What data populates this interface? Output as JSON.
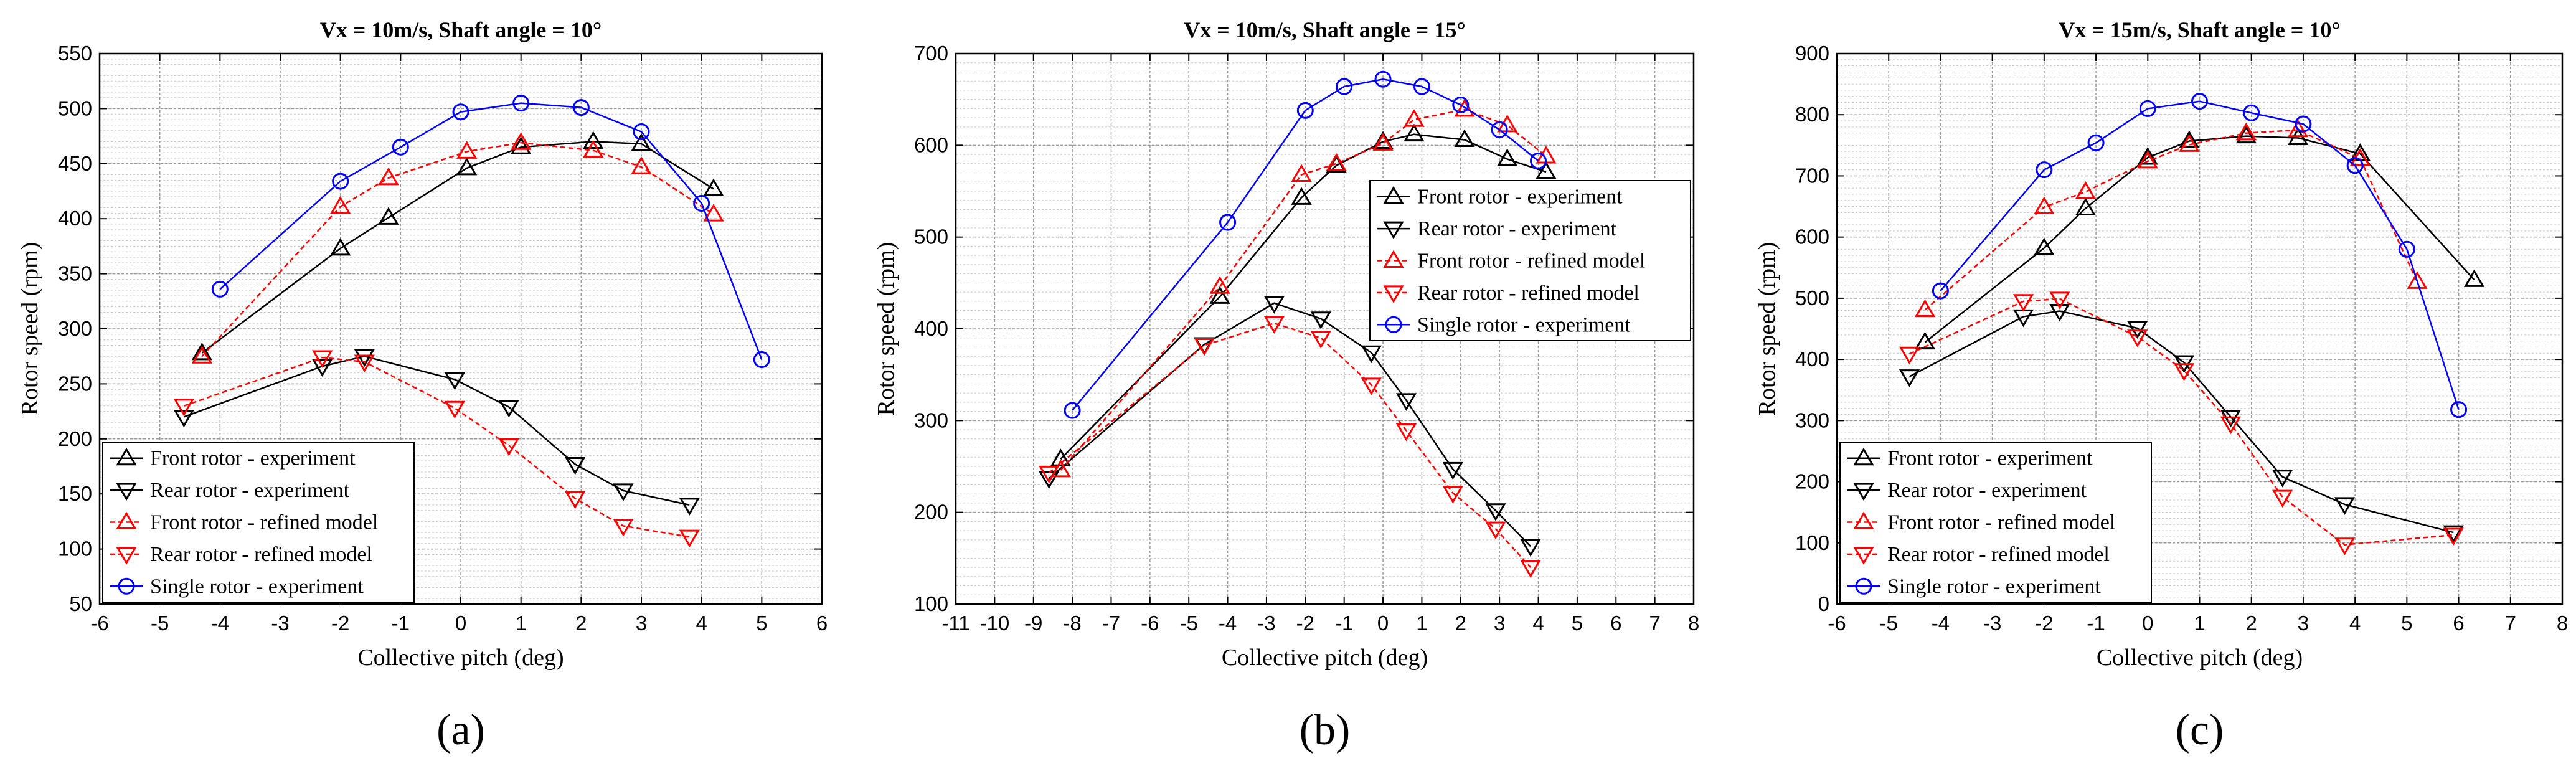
{
  "colors": {
    "front_experiment": "#000000",
    "rear_experiment": "#000000",
    "front_model": "#ff0000",
    "rear_model": "#ff0000",
    "single_experiment": "#0000ff"
  },
  "legend_labels": [
    "Front rotor - experiment",
    "Rear rotor - experiment",
    "Front rotor - refined model",
    "Rear rotor - refined model",
    "Single rotor - experiment"
  ],
  "chart_data": [
    {
      "type": "line",
      "panel_label": "(a)",
      "title": "Vx = 10m/s, Shaft angle = 10°",
      "xlabel": "Collective pitch (deg)",
      "ylabel": "Rotor speed (rpm)",
      "xlim": [
        -6,
        6
      ],
      "ylim": [
        50,
        550
      ],
      "xticks": [
        -6,
        -5,
        -4,
        -3,
        -2,
        -1,
        0,
        1,
        2,
        3,
        4,
        5,
        6
      ],
      "yticks": [
        50,
        100,
        150,
        200,
        250,
        300,
        350,
        400,
        450,
        500,
        550
      ],
      "grid": true,
      "legend_position": "bottom-left",
      "series": [
        {
          "name": "Front rotor - experiment",
          "marker": "triangle-up",
          "color": "#000000",
          "x": [
            -4.3,
            -2,
            -1.2,
            0.1,
            1,
            2.2,
            3,
            4.2
          ],
          "y": [
            278,
            373,
            401,
            446,
            465,
            470,
            468,
            427
          ]
        },
        {
          "name": "Rear rotor - experiment",
          "marker": "triangle-down",
          "color": "#000000",
          "x": [
            -4.6,
            -2.3,
            -1.6,
            -0.1,
            0.8,
            1.9,
            2.7,
            3.8
          ],
          "y": [
            220,
            266,
            275,
            254,
            229,
            177,
            153,
            140
          ]
        },
        {
          "name": "Front rotor - refined model",
          "marker": "triangle-up",
          "color": "#ff0000",
          "x": [
            -4.3,
            -2,
            -1.2,
            0.1,
            1,
            2.2,
            3,
            4.2
          ],
          "y": [
            275,
            411,
            437,
            461,
            469,
            462,
            447,
            404
          ]
        },
        {
          "name": "Rear rotor - refined model",
          "marker": "triangle-down",
          "color": "#ff0000",
          "x": [
            -4.6,
            -2.3,
            -1.6,
            -0.1,
            0.8,
            1.9,
            2.7,
            3.8
          ],
          "y": [
            230,
            274,
            270,
            228,
            194,
            146,
            121,
            111
          ]
        },
        {
          "name": "Single rotor - experiment",
          "marker": "circle",
          "color": "#0000ff",
          "x": [
            -4,
            -2,
            -1,
            0,
            1,
            2,
            3,
            4,
            5
          ],
          "y": [
            336,
            434,
            465,
            497,
            505,
            501,
            479,
            414,
            272
          ]
        }
      ]
    },
    {
      "type": "line",
      "panel_label": "(b)",
      "title": "Vx = 10m/s, Shaft angle = 15°",
      "xlabel": "Collective pitch (deg)",
      "ylabel": "Rotor speed (rpm)",
      "xlim": [
        -11,
        8
      ],
      "ylim": [
        100,
        700
      ],
      "xticks": [
        -11,
        -10,
        -9,
        -8,
        -7,
        -6,
        -5,
        -4,
        -3,
        -2,
        -1,
        0,
        1,
        2,
        3,
        4,
        5,
        6,
        7,
        8
      ],
      "yticks": [
        100,
        200,
        300,
        400,
        500,
        600,
        700
      ],
      "grid": true,
      "legend_position": "top-right",
      "series": [
        {
          "name": "Front rotor - experiment",
          "marker": "triangle-up",
          "color": "#000000",
          "x": [
            -8.3,
            -4.2,
            -2.1,
            -1.2,
            0,
            0.8,
            2.1,
            3.2,
            4.2
          ],
          "y": [
            258,
            435,
            543,
            578,
            604,
            612,
            606,
            585,
            571
          ]
        },
        {
          "name": "Rear rotor - experiment",
          "marker": "triangle-down",
          "color": "#000000",
          "x": [
            -8.6,
            -4.6,
            -2.8,
            -1.6,
            -0.3,
            0.6,
            1.8,
            2.9,
            3.8
          ],
          "y": [
            237,
            383,
            428,
            411,
            374,
            322,
            247,
            202,
            163
          ]
        },
        {
          "name": "Front rotor - refined model",
          "marker": "triangle-up",
          "color": "#ff0000",
          "x": [
            -8.3,
            -4.2,
            -2.1,
            -1.2,
            0,
            0.8,
            2.1,
            3.2,
            4.2
          ],
          "y": [
            246,
            446,
            568,
            580,
            602,
            628,
            639,
            622,
            588
          ]
        },
        {
          "name": "Rear rotor - refined model",
          "marker": "triangle-down",
          "color": "#ff0000",
          "x": [
            -8.6,
            -4.6,
            -2.8,
            -1.6,
            -0.3,
            0.6,
            1.8,
            2.9,
            3.8
          ],
          "y": [
            243,
            382,
            406,
            390,
            339,
            289,
            221,
            182,
            140
          ]
        },
        {
          "name": "Single rotor - experiment",
          "marker": "circle",
          "color": "#0000ff",
          "x": [
            -8,
            -4,
            -2,
            -1,
            0,
            1,
            2,
            3,
            4
          ],
          "y": [
            311,
            516,
            638,
            664,
            672,
            664,
            644,
            617,
            583
          ]
        }
      ]
    },
    {
      "type": "line",
      "panel_label": "(c)",
      "title": "Vx = 15m/s, Shaft angle = 10°",
      "xlabel": "Collective pitch (deg)",
      "ylabel": "Rotor speed (rpm)",
      "xlim": [
        -6,
        8
      ],
      "ylim": [
        0,
        900
      ],
      "xticks": [
        -6,
        -5,
        -4,
        -3,
        -2,
        -1,
        0,
        1,
        2,
        3,
        4,
        5,
        6,
        7,
        8
      ],
      "yticks": [
        0,
        100,
        200,
        300,
        400,
        500,
        600,
        700,
        800,
        900
      ],
      "grid": true,
      "legend_position": "bottom-left",
      "series": [
        {
          "name": "Front rotor - experiment",
          "marker": "triangle-up",
          "color": "#000000",
          "x": [
            -4.3,
            -2,
            -1.2,
            0,
            0.8,
            1.9,
            2.9,
            4.1,
            6.3
          ],
          "y": [
            428,
            582,
            647,
            730,
            757,
            765,
            762,
            736,
            530
          ]
        },
        {
          "name": "Rear rotor - experiment",
          "marker": "triangle-down",
          "color": "#000000",
          "x": [
            -4.6,
            -2.4,
            -1.7,
            -0.2,
            0.7,
            1.6,
            2.6,
            3.8,
            5.9
          ],
          "y": [
            372,
            470,
            479,
            451,
            395,
            306,
            208,
            163,
            117
          ]
        },
        {
          "name": "Front rotor - refined model",
          "marker": "triangle-up",
          "color": "#ff0000",
          "x": [
            -4.3,
            -2,
            -1.2,
            0,
            0.8,
            1.9,
            2.9,
            4.1,
            5.2
          ],
          "y": [
            481,
            649,
            674,
            724,
            751,
            770,
            775,
            728,
            527
          ]
        },
        {
          "name": "Rear rotor - refined model",
          "marker": "triangle-down",
          "color": "#ff0000",
          "x": [
            -4.6,
            -2.4,
            -1.7,
            -0.2,
            0.7,
            1.6,
            2.6,
            3.8,
            5.9
          ],
          "y": [
            409,
            495,
            499,
            437,
            382,
            295,
            175,
            97,
            113
          ]
        },
        {
          "name": "Single rotor - experiment",
          "marker": "circle",
          "color": "#0000ff",
          "x": [
            -4,
            -2,
            -1,
            0,
            1,
            2,
            3,
            4,
            5,
            6
          ],
          "y": [
            512,
            710,
            754,
            810,
            822,
            803,
            785,
            717,
            580,
            318
          ]
        }
      ]
    }
  ]
}
